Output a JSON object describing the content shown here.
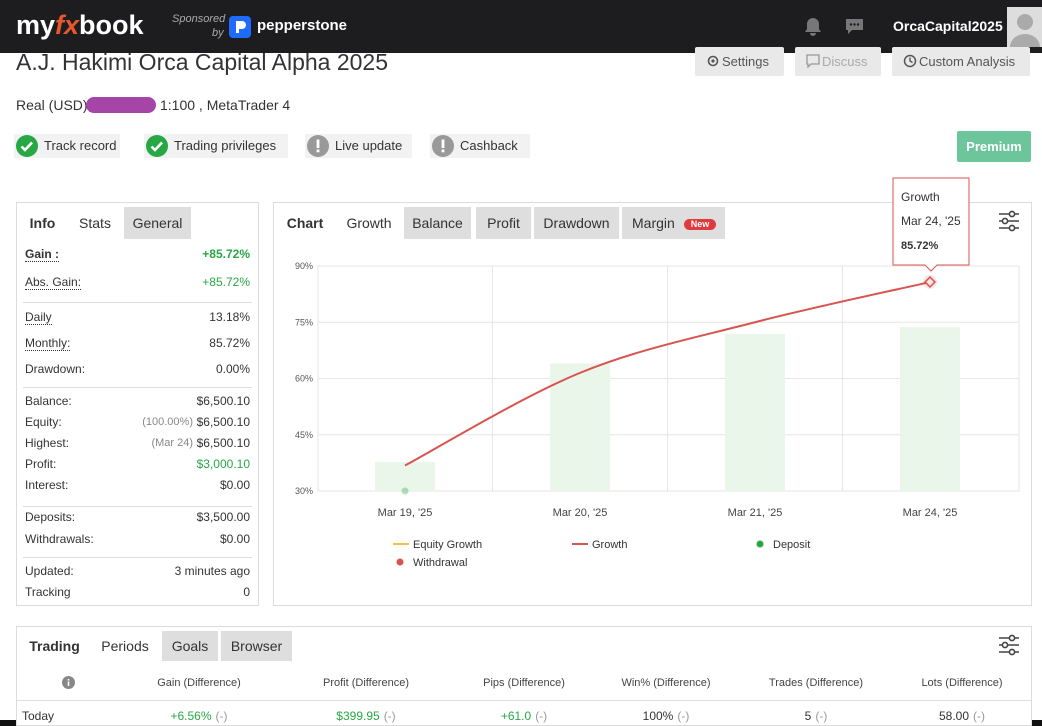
{
  "header": {
    "logo": [
      "my",
      "fx",
      "book"
    ],
    "sponsored": "Sponsored",
    "by": "by",
    "sponsor": "pepperstone",
    "user": "OrcaCapital2025"
  },
  "account": {
    "title": "A.J. Hakimi Orca Capital Alpha 2025",
    "type": "Real (USD),",
    "details": "1:100 , MetaTrader 4"
  },
  "buttons": [
    "Settings",
    "Discuss",
    "Custom Analysis"
  ],
  "premium": "Premium",
  "badges": [
    {
      "label": "Track record",
      "verified": true
    },
    {
      "label": "Trading privileges",
      "verified": true
    },
    {
      "label": "Live update",
      "verified": false
    },
    {
      "label": "Cashback",
      "verified": false
    }
  ],
  "stats_panel": {
    "tabs": [
      "Info",
      "Stats",
      "General"
    ],
    "groups": [
      [
        {
          "label": "Gain :",
          "value": "+85.72%",
          "color": "#28a745",
          "bold": true
        },
        {
          "label": "Abs. Gain:",
          "value": "+85.72%",
          "color": "#28a745"
        }
      ],
      [
        {
          "label": "Daily",
          "value": "13.18%"
        },
        {
          "label": "Monthly:",
          "value": "85.72%"
        },
        {
          "label": "Drawdown:",
          "value": "0.00%"
        }
      ],
      [
        {
          "label": "Balance:",
          "value": "$6,500.10"
        },
        {
          "label": "Equity:",
          "note": "(100.00%)",
          "value": "$6,500.10"
        },
        {
          "label": "Highest:",
          "note": "(Mar 24)",
          "value": "$6,500.10"
        },
        {
          "label": "Profit:",
          "value": "$3,000.10",
          "color": "#28a745"
        },
        {
          "label": "Interest:",
          "value": "$0.00"
        }
      ],
      [
        {
          "label": "Deposits:",
          "value": "$3,500.00"
        },
        {
          "label": "Withdrawals:",
          "value": "$0.00"
        }
      ],
      [
        {
          "label": "Updated:",
          "value": "3 minutes ago"
        },
        {
          "label": "Tracking",
          "value": "0"
        }
      ]
    ]
  },
  "chart_panel": {
    "tabs": [
      "Chart",
      "Growth",
      "Balance",
      "Profit",
      "Drawdown",
      "Margin"
    ],
    "new_badge": "New"
  },
  "chart_data": {
    "type": "line",
    "categories": [
      "Mar 19, '25",
      "Mar 20, '25",
      "Mar 21, '25",
      "Mar 24, '25"
    ],
    "series": [
      {
        "name": "Equity Growth",
        "color": "#f0c24b",
        "values": [
          null,
          null,
          null,
          null
        ]
      },
      {
        "name": "Growth",
        "color": "#d9534f",
        "values": [
          36.8,
          61.5,
          75,
          85.72
        ]
      },
      {
        "name": "Deposit",
        "color": "#28a745",
        "values": [
          30,
          null,
          null,
          null
        ]
      },
      {
        "name": "Withdrawal",
        "color": "#d9534f",
        "values": [
          null,
          null,
          null,
          null
        ]
      }
    ],
    "bars": {
      "color": "#eaf6ea",
      "values": [
        37.7,
        64,
        71.9,
        73.7
      ]
    },
    "ylim": [
      30,
      90
    ],
    "yticks": [
      {
        "value": 30,
        "label": "30%"
      },
      {
        "value": 45,
        "label": "45%"
      },
      {
        "value": 60,
        "label": "60%"
      },
      {
        "value": 75,
        "label": "75%"
      },
      {
        "value": 90,
        "label": "90%"
      }
    ],
    "grid": true,
    "tooltip": {
      "label": "85.72%"
    }
  },
  "periods_panel": {
    "tabs": [
      "Trading",
      "Periods",
      "Goals",
      "Browser"
    ],
    "columns": [
      "Gain (Difference)",
      "Profit (Difference)",
      "Pips (Difference)",
      "Win% (Difference)",
      "Trades (Difference)",
      "Lots (Difference)"
    ],
    "rows": [
      {
        "label": "Today",
        "cells": [
          {
            "value": "+6.56%",
            "diff": "(-)",
            "color": "#28a745"
          },
          {
            "value": "$399.95",
            "diff": "(-)",
            "color": "#28a745"
          },
          {
            "value": "+61.0",
            "diff": "(-)",
            "color": "#28a745"
          },
          {
            "value": "100%",
            "diff": "(-)"
          },
          {
            "value": "5",
            "diff": "(-)"
          },
          {
            "value": "58.00",
            "diff": "(-)"
          }
        ]
      }
    ]
  }
}
